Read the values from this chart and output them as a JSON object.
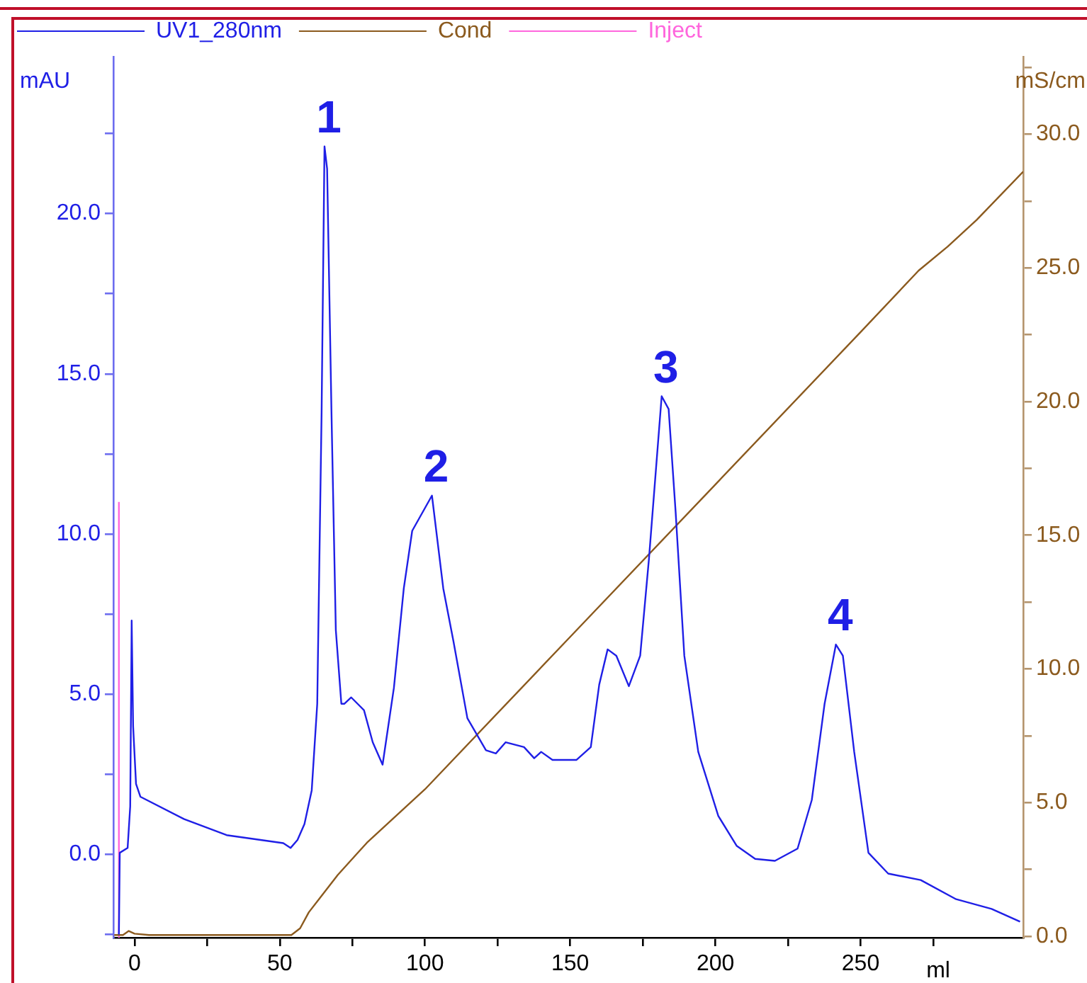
{
  "chart_data": {
    "type": "line",
    "ylabel": "mAU",
    "y2label": "mS/cm",
    "xlabel": "ml",
    "legend": "top left",
    "xlim": [
      -7.3,
      306
    ],
    "xticks": [
      0,
      {
        "value": 25,
        "label": null
      },
      50,
      {
        "value": 75,
        "label": null
      },
      100,
      {
        "value": 125,
        "label": null
      },
      150,
      {
        "value": 175,
        "label": null
      },
      200,
      {
        "value": 225,
        "label": null
      },
      250,
      {
        "value": 275,
        "label": null
      }
    ],
    "ylim": [
      -2.6,
      24.9
    ],
    "yticks": [
      {
        "value": -2.5,
        "label": null
      },
      {
        "value": 0,
        "label": "0.0"
      },
      {
        "value": 2.5,
        "label": null
      },
      {
        "value": 5,
        "label": "5.0"
      },
      {
        "value": 7.5,
        "label": null
      },
      {
        "value": 10,
        "label": "10.0"
      },
      {
        "value": 12.5,
        "label": null
      },
      {
        "value": 15,
        "label": "15.0"
      },
      {
        "value": 17.5,
        "label": null
      },
      {
        "value": 20,
        "label": "20.0"
      },
      {
        "value": 22.5,
        "label": null
      }
    ],
    "y2lim": [
      -0.05,
      32.9
    ],
    "y2ticks": [
      {
        "value": 0,
        "label": "0.0"
      },
      {
        "value": 2.5,
        "label": null
      },
      {
        "value": 5,
        "label": "5.0"
      },
      {
        "value": 7.5,
        "label": null
      },
      {
        "value": 10,
        "label": "10.0"
      },
      {
        "value": 12.5,
        "label": null
      },
      {
        "value": 15,
        "label": "15.0"
      },
      {
        "value": 17.5,
        "label": null
      },
      {
        "value": 20,
        "label": "20.0"
      },
      {
        "value": 22.5,
        "label": null
      },
      {
        "value": 25,
        "label": "25.0"
      },
      {
        "value": 27.5,
        "label": null
      },
      {
        "value": 30,
        "label": "30.0"
      },
      {
        "value": 32.5,
        "label": null
      }
    ],
    "series": [
      {
        "name": "UV1_280nm",
        "color": "#1f1fe6",
        "x": [
          -5.4,
          -5.1,
          -2.4,
          -1.5,
          -1.0,
          -0.5,
          0.5,
          2,
          17.1,
          31.7,
          51.2,
          53.7,
          56.1,
          58.5,
          61,
          62.9,
          64.4,
          65.4,
          66.3,
          67.8,
          69.3,
          71.2,
          72.2,
          74.6,
          79,
          82,
          85.4,
          89.3,
          92.7,
          95.6,
          102.4,
          106.3,
          109.8,
          114.6,
          121,
          124.4,
          127.8,
          134.1,
          137.6,
          140,
          143.9,
          152.2,
          157.1,
          160,
          162.9,
          165.9,
          170.2,
          174.1,
          177.1,
          181.5,
          183.9,
          186.3,
          189.3,
          194.1,
          201,
          207.3,
          213.7,
          220.5,
          228.3,
          233.2,
          237.6,
          241.5,
          243.9,
          247.8,
          252.7,
          259.5,
          270.7,
          282.9,
          295.1,
          304.9
        ],
        "values": [
          -2.5,
          0.05,
          0.2,
          1.5,
          7.3,
          4,
          2.2,
          1.8,
          1.1,
          0.6,
          0.35,
          0.2,
          0.45,
          0.95,
          2.0,
          4.7,
          13.8,
          22.1,
          21.4,
          13.8,
          7.0,
          4.7,
          4.7,
          4.9,
          4.5,
          3.5,
          2.8,
          5.2,
          8.3,
          10.1,
          11.2,
          8.3,
          6.65,
          4.25,
          3.25,
          3.15,
          3.5,
          3.35,
          3.0,
          3.2,
          2.95,
          2.95,
          3.35,
          5.3,
          6.4,
          6.2,
          5.25,
          6.2,
          9.2,
          14.3,
          13.9,
          10.7,
          6.2,
          3.2,
          1.2,
          0.27,
          -0.14,
          -0.2,
          0.18,
          1.7,
          4.7,
          6.55,
          6.2,
          3.2,
          0.05,
          -0.6,
          -0.8,
          -1.4,
          -1.7,
          -2.1
        ]
      },
      {
        "name": "Cond",
        "color": "#8b5a1e",
        "axis": "y2",
        "x": [
          -7,
          -4,
          -2,
          0,
          5,
          54,
          57,
          60,
          70,
          80,
          100,
          150,
          200,
          250,
          270,
          280,
          290,
          306
        ],
        "values": [
          0.05,
          0.05,
          0.2,
          0.1,
          0.05,
          0.05,
          0.3,
          0.9,
          2.3,
          3.5,
          5.5,
          11.2,
          16.9,
          22.6,
          24.9,
          25.8,
          26.8,
          28.6
        ]
      },
      {
        "name": "Inject",
        "color": "#ff66dd",
        "x": [
          -5.4,
          -5.4
        ],
        "values": [
          -2.6,
          11.0
        ]
      }
    ],
    "annotations": [
      {
        "text": "1",
        "x": 65.4,
        "y": 22.1
      },
      {
        "text": "2",
        "x": 102.4,
        "y": 11.2
      },
      {
        "text": "3",
        "x": 181.5,
        "y": 14.3
      },
      {
        "text": "4",
        "x": 241.5,
        "y": 6.55
      }
    ]
  }
}
